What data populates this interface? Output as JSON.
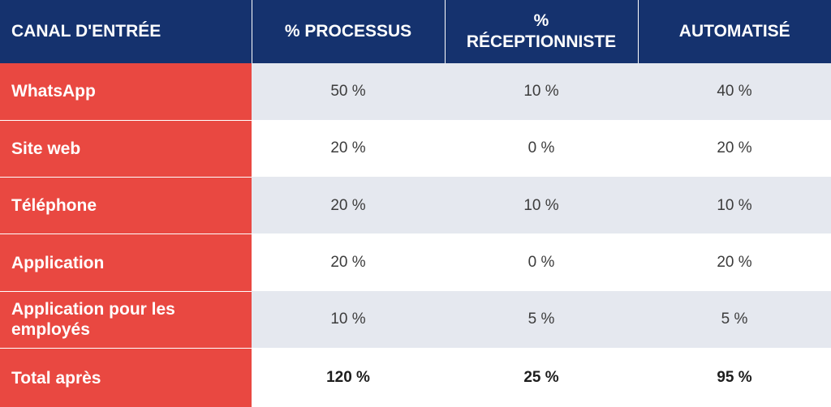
{
  "colors": {
    "header_bg": "#15326e",
    "label_bg": "#e94841",
    "row_shade": "#e5e8ef",
    "row_plain": "#ffffff",
    "header_text": "#ffffff"
  },
  "table": {
    "headers": [
      "CANAL D'ENTRÉE",
      "% PROCESSUS",
      "% RÉCEPTIONNISTE",
      "AUTOMATISÉ"
    ],
    "rows": [
      {
        "label": "WhatsApp",
        "processus": "50 %",
        "receptionniste": "10 %",
        "automatise": "40 %"
      },
      {
        "label": "Site web",
        "processus": "20 %",
        "receptionniste": "0 %",
        "automatise": "20 %"
      },
      {
        "label": "Téléphone",
        "processus": "20 %",
        "receptionniste": "10 %",
        "automatise": "10 %"
      },
      {
        "label": "Application",
        "processus": "20 %",
        "receptionniste": "0 %",
        "automatise": "20 %"
      },
      {
        "label": "Application pour les employés",
        "processus": "10 %",
        "receptionniste": "5 %",
        "automatise": "5 %"
      },
      {
        "label": "Total après",
        "processus": "120 %",
        "receptionniste": "25 %",
        "automatise": "95 %"
      }
    ]
  }
}
